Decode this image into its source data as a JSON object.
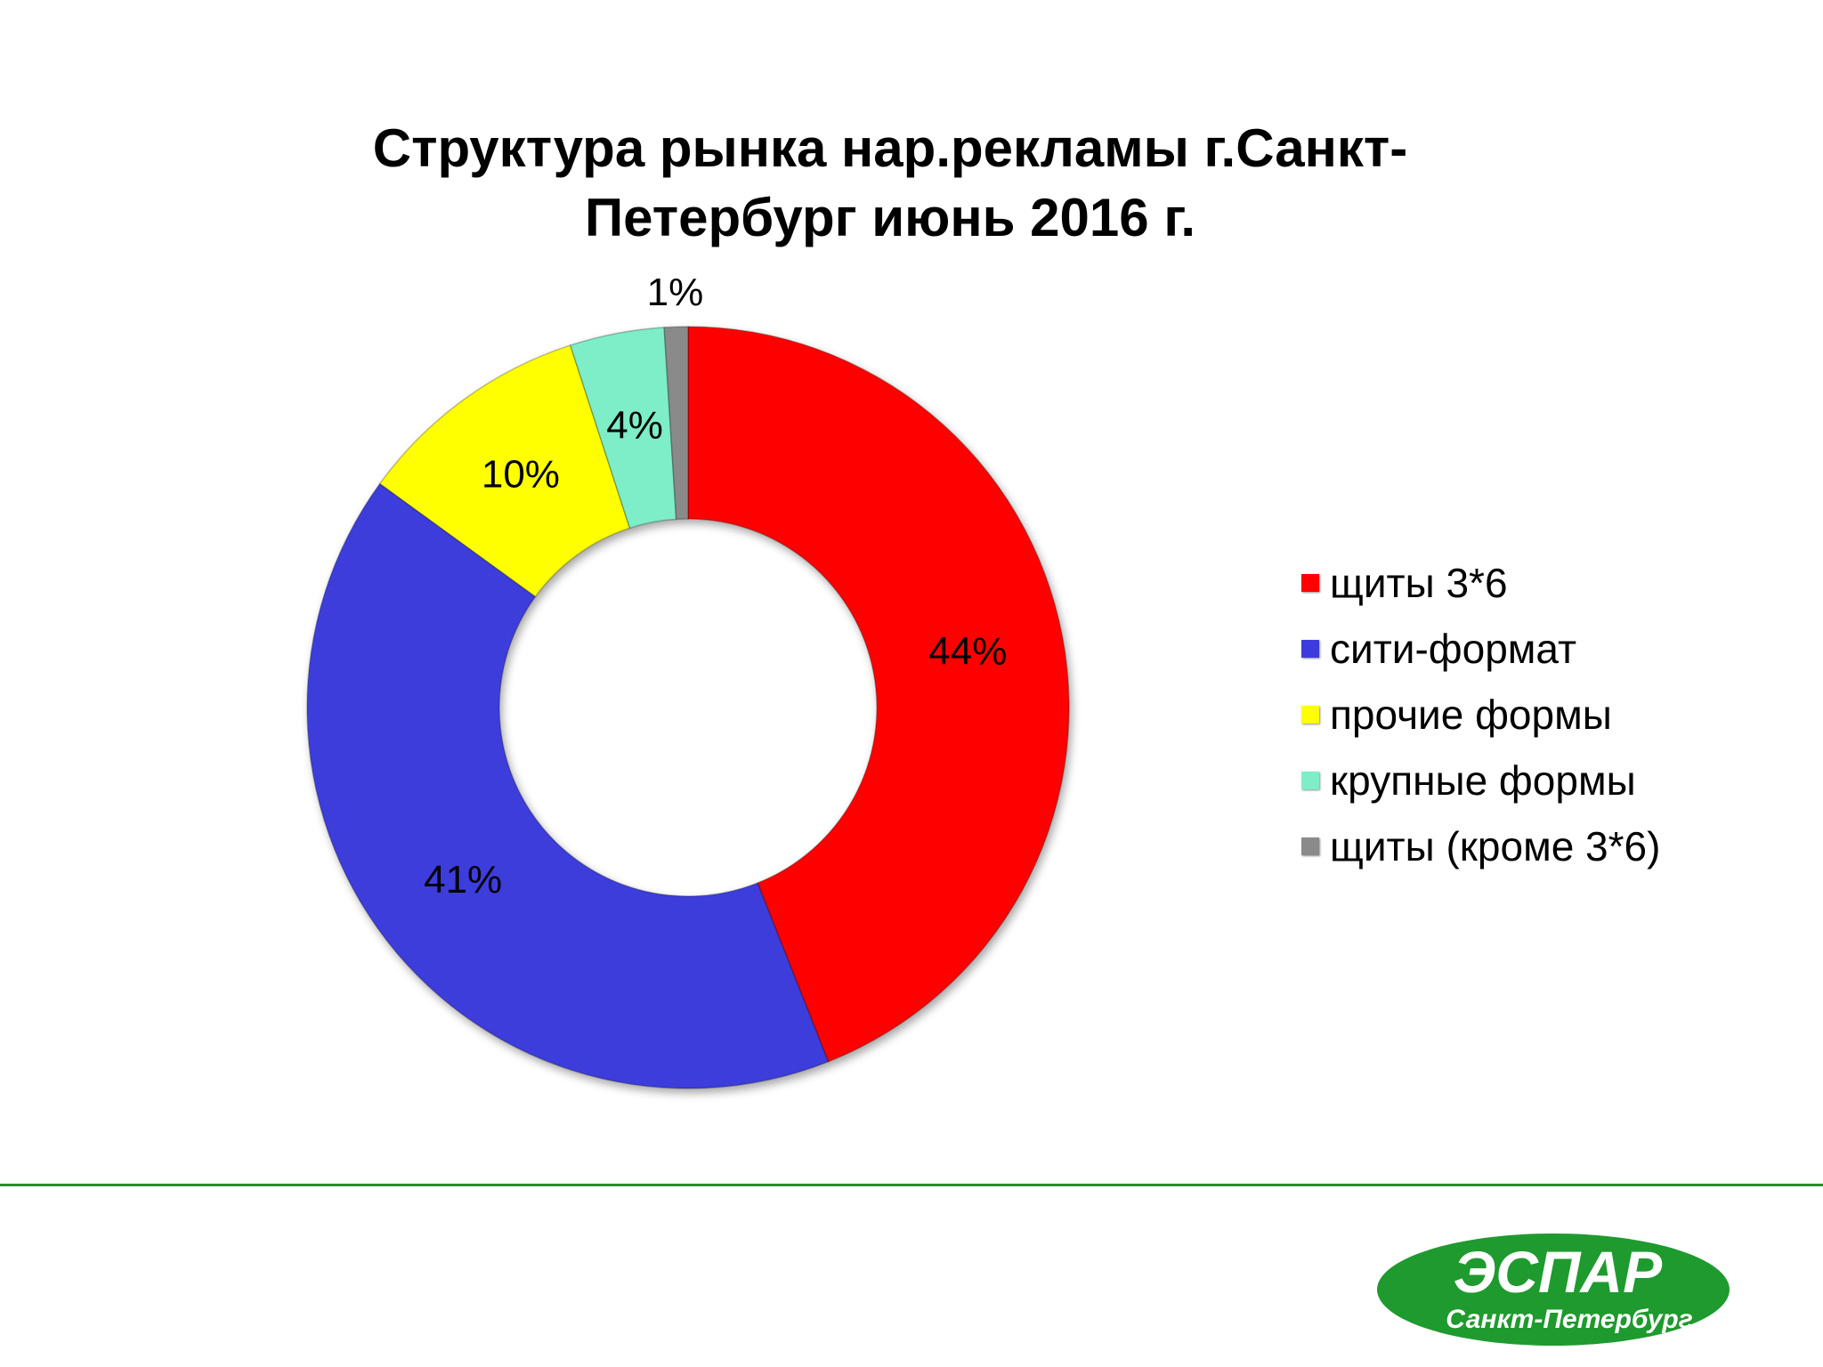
{
  "chart_data": {
    "type": "pie",
    "title_lines": [
      "Структура рынка нар.рекламы г.Санкт-",
      "Петербург июнь 2016 г."
    ],
    "categories": [
      "щиты 3*6",
      "сити-формат",
      "прочие формы",
      "крупные формы",
      "щиты (кроме 3*6)"
    ],
    "values": [
      44,
      41,
      10,
      4,
      1
    ],
    "value_labels": [
      "44%",
      "41%",
      "10%",
      "4%",
      "1%"
    ],
    "colors": [
      "#ff0000",
      "#3c3cdc",
      "#ffff00",
      "#7deec8",
      "#8a8a8a"
    ],
    "legend_position": "right",
    "donut": true
  },
  "divider_color": "#2e8b2e",
  "logo": {
    "name": "ЭСПАР",
    "subtitle": "Санкт-Петербург",
    "color": "#1f9a2e"
  }
}
